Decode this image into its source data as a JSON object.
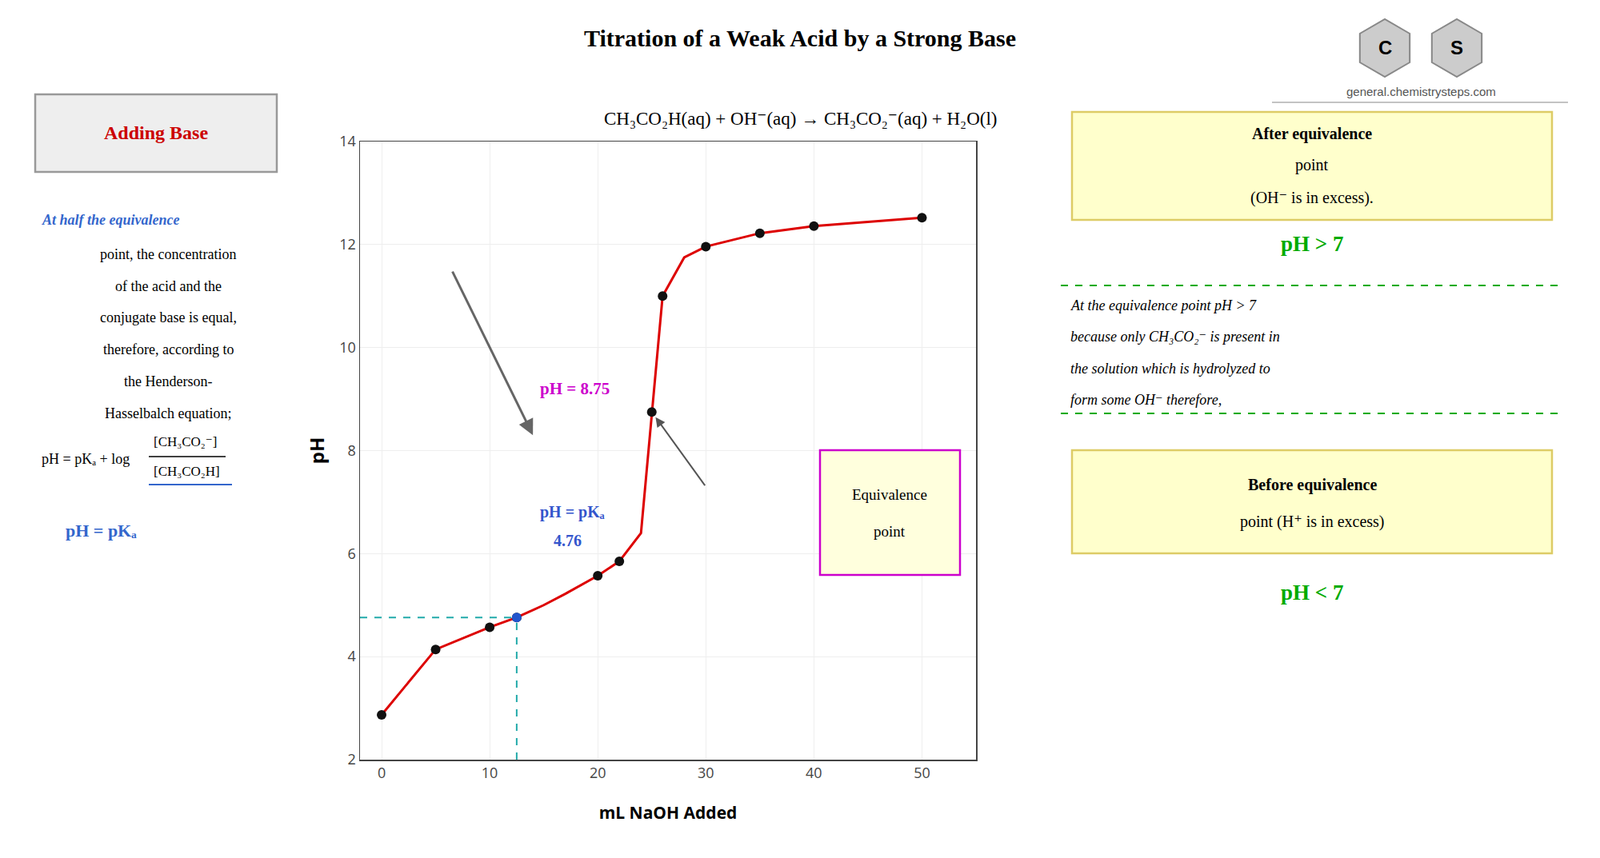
{
  "chart_data": {
    "type": "line",
    "title": "Titration of a Weak Acid by a Strong Base",
    "subtitle": "CH₃CO₂H(aq) + OH⁻(aq) → CH₃CO₂⁻(aq) + H₂O(l)",
    "xlabel": "mL NaOH Added",
    "ylabel": "pH",
    "xlim": [
      -2,
      55
    ],
    "ylim": [
      2,
      14
    ],
    "xticks": [
      0,
      10,
      20,
      30,
      40,
      50
    ],
    "yticks": [
      2,
      4,
      6,
      8,
      10,
      12,
      14
    ],
    "grid": true,
    "series": [
      {
        "type": "line",
        "color": "#dd0000",
        "line_style": "solid",
        "x": [
          0,
          5,
          10,
          12.5,
          15,
          17,
          20,
          22,
          24,
          25,
          26,
          28,
          30,
          35,
          40,
          50
        ],
        "values": [
          2.87,
          4.14,
          4.57,
          4.76,
          5.0,
          5.22,
          5.57,
          5.85,
          6.4,
          8.75,
          11.0,
          11.75,
          11.96,
          12.22,
          12.36,
          12.52
        ]
      },
      {
        "type": "scatter",
        "color": "#111111",
        "marker": "circle",
        "x": [
          0,
          5,
          10,
          12.5,
          20,
          22,
          25,
          26,
          30,
          35,
          40,
          50
        ],
        "values": [
          2.87,
          4.14,
          4.57,
          4.76,
          5.57,
          5.85,
          8.75,
          11.0,
          11.96,
          12.22,
          12.36,
          12.52
        ]
      },
      {
        "type": "scatter",
        "color": "#2255cc",
        "marker": "circle",
        "x": [
          12.5
        ],
        "values": [
          4.76
        ]
      },
      {
        "type": "line",
        "color": "#22aaaa",
        "line_style": "dash",
        "x": [
          12.5,
          12.5
        ],
        "values": [
          2,
          4.76
        ]
      },
      {
        "type": "line",
        "color": "#22aaaa",
        "line_style": "dash",
        "x": [
          -2,
          12.5
        ],
        "values": [
          4.76,
          4.76
        ]
      }
    ],
    "equivalence_point": {
      "x": 25,
      "y": 8.75
    },
    "annotations": [
      {
        "text": [
          "Adding Base"
        ],
        "color": "#cc0000"
      },
      {
        "text": [
          "At half the equivalence"
        ],
        "color": "#3366cc"
      },
      {
        "text": [
          "point, the concentration",
          "of the acid and the",
          "conjugate base is equal,",
          "therefore, according to",
          "the Henderson-",
          "Hasselbalch equation;"
        ]
      },
      {
        "text": [
          "pH = pKₐ + log"
        ]
      },
      {
        "text": [
          "[CH₃CO₂⁻]"
        ]
      },
      {
        "text": [
          "[CH₃CO₂H]"
        ]
      },
      {
        "text": [
          "pH = pKₐ"
        ],
        "color": "#3366cc"
      },
      {
        "text": [
          "pH = 8.75"
        ],
        "color": "#cc00cc"
      },
      {
        "text": [
          "pH = pKₐ"
        ],
        "color": "#3355cc"
      },
      {
        "text": [
          "4.76"
        ],
        "color": "#3355cc"
      },
      {
        "text": [
          "Equivalence",
          "point"
        ]
      },
      {
        "text": [
          "C"
        ]
      },
      {
        "text": [
          "S"
        ]
      },
      {
        "text": [
          "general.chemistrysteps.com"
        ],
        "color": "#555555"
      },
      {
        "text": [
          "After equivalence",
          "point",
          "(OH⁻ is in excess)."
        ]
      },
      {
        "text": [
          "pH > 7"
        ],
        "color": "#00aa00"
      },
      {
        "text": [
          "At the equivalence point pH > 7",
          "because only CH₃CO₂⁻ is present in",
          "the solution which is hydrolyzed to",
          "form some OH⁻ therefore,"
        ]
      },
      {
        "text": [
          "Before equivalence",
          "point (H⁺ is in excess)"
        ]
      },
      {
        "text": [
          "pH < 7"
        ],
        "color": "#00aa00"
      }
    ]
  }
}
